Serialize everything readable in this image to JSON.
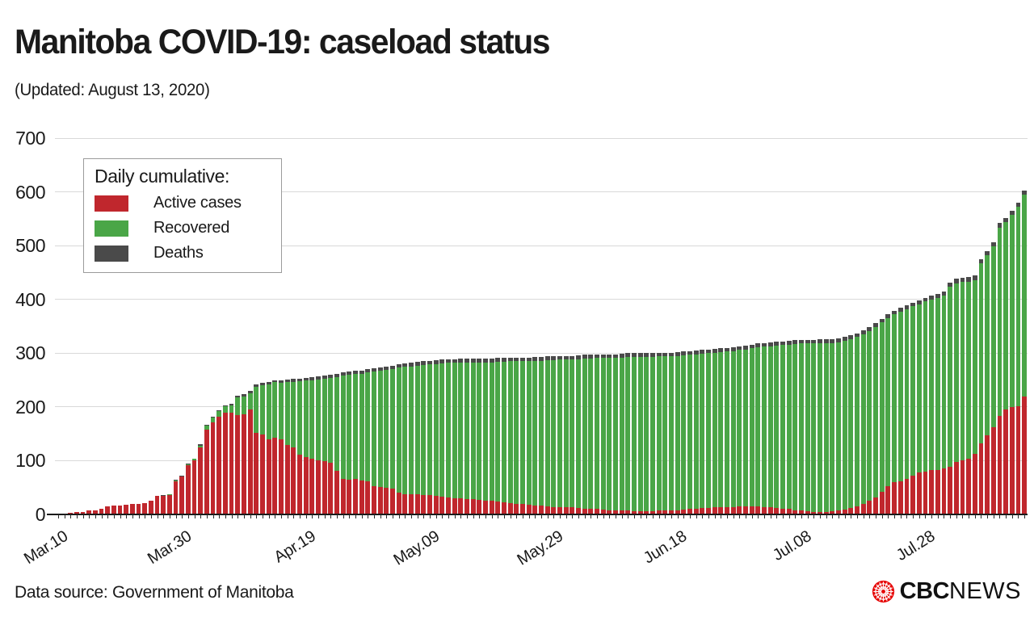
{
  "header": {
    "title": "Manitoba COVID-19: caseload status",
    "subtitle": "(Updated: August 13, 2020)"
  },
  "legend": {
    "title": "Daily cumulative:",
    "items": [
      {
        "label": "Active cases",
        "color": "#c0272d"
      },
      {
        "label": "Recovered",
        "color": "#4aa647"
      },
      {
        "label": "Deaths",
        "color": "#4a4a4a"
      }
    ]
  },
  "footer": {
    "source": "Data source: Government of Manitoba",
    "brand_cbc": "CBC",
    "brand_news": "NEWS"
  },
  "colors": {
    "active": "#c0272d",
    "recovered": "#4aa647",
    "deaths": "#4a4a4a",
    "gridline": "#d9d9d9",
    "axis": "#1a1a1a",
    "cbc_red": "#e60505"
  },
  "chart_data": {
    "type": "bar",
    "stacked": true,
    "title": "Manitoba COVID-19: caseload status",
    "xlabel": "",
    "ylabel": "",
    "ylim": [
      0,
      700
    ],
    "y_ticks": [
      0,
      100,
      200,
      300,
      400,
      500,
      600,
      700
    ],
    "grid": true,
    "legend_position": "top-left",
    "n_days": 157,
    "x_first_day": "Mar.10",
    "x_last_day": "Aug.13",
    "x_tick_labels": [
      "Mar.10",
      "Mar.30",
      "Apr.19",
      "May.09",
      "May.29",
      "Jun.18",
      "Jul.08",
      "Jul.28"
    ],
    "x_tick_positions": [
      0,
      20,
      40,
      60,
      80,
      100,
      120,
      140
    ],
    "series": [
      {
        "name": "Active cases",
        "color": "#c0272d",
        "values": [
          0,
          0,
          3,
          4,
          4,
          7,
          8,
          11,
          15,
          17,
          17,
          18,
          19,
          20,
          21,
          25,
          35,
          35,
          36,
          62,
          70,
          91,
          100,
          124,
          158,
          171,
          182,
          190,
          190,
          185,
          187,
          195,
          152,
          149,
          140,
          142,
          139,
          129,
          124,
          111,
          106,
          104,
          101,
          99,
          96,
          81,
          66,
          64,
          66,
          63,
          61,
          53,
          51,
          50,
          48,
          41,
          38,
          37,
          37,
          36,
          36,
          35,
          33,
          32,
          30,
          30,
          29,
          28,
          27,
          26,
          25,
          24,
          22,
          21,
          20,
          19,
          18,
          17,
          16,
          15,
          14,
          14,
          13,
          13,
          12,
          11,
          10,
          10,
          9,
          8,
          8,
          7,
          7,
          6,
          6,
          6,
          6,
          7,
          7,
          7,
          8,
          9,
          10,
          11,
          12,
          12,
          13,
          13,
          14,
          14,
          15,
          15,
          15,
          15,
          14,
          13,
          12,
          11,
          10,
          8,
          7,
          6,
          5,
          5,
          5,
          6,
          7,
          9,
          12,
          15,
          20,
          26,
          32,
          42,
          52,
          60,
          62,
          66,
          72,
          78,
          80,
          82,
          82,
          86,
          89,
          98,
          101,
          104,
          112,
          132,
          147,
          162,
          184,
          195,
          200,
          202,
          220
        ]
      },
      {
        "name": "Recovered",
        "color": "#4aa647",
        "values": [
          0,
          0,
          0,
          0,
          0,
          0,
          0,
          0,
          0,
          0,
          0,
          0,
          0,
          0,
          0,
          0,
          0,
          0,
          1,
          1,
          1,
          2,
          3,
          4,
          7,
          9,
          10,
          11,
          13,
          33,
          33,
          31,
          86,
          92,
          102,
          104,
          106,
          117,
          123,
          137,
          143,
          146,
          150,
          153,
          158,
          175,
          192,
          196,
          195,
          199,
          203,
          213,
          216,
          219,
          223,
          232,
          237,
          238,
          240,
          242,
          243,
          245,
          248,
          250,
          252,
          253,
          254,
          255,
          256,
          257,
          258,
          260,
          262,
          264,
          265,
          266,
          267,
          269,
          270,
          272,
          273,
          274,
          275,
          275,
          277,
          279,
          280,
          281,
          282,
          283,
          283,
          285,
          286,
          287,
          287,
          287,
          287,
          287,
          287,
          287,
          287,
          287,
          287,
          287,
          287,
          288,
          288,
          289,
          289,
          290,
          291,
          292,
          294,
          296,
          298,
          300,
          302,
          304,
          306,
          309,
          311,
          312,
          313,
          314,
          314,
          313,
          313,
          314,
          314,
          315,
          315,
          315,
          317,
          315,
          313,
          312,
          315,
          316,
          315,
          313,
          316,
          318,
          320,
          321,
          334,
          332,
          331,
          329,
          324,
          335,
          335,
          337,
          350,
          349,
          357,
          370,
          375
        ]
      },
      {
        "name": "Deaths",
        "color": "#4a4a4a",
        "values": [
          0,
          0,
          0,
          0,
          0,
          0,
          0,
          0,
          0,
          0,
          0,
          0,
          0,
          0,
          0,
          0,
          0,
          1,
          1,
          1,
          1,
          1,
          1,
          2,
          2,
          2,
          2,
          2,
          3,
          3,
          4,
          4,
          4,
          4,
          4,
          4,
          5,
          5,
          5,
          5,
          5,
          5,
          6,
          6,
          6,
          6,
          6,
          6,
          6,
          6,
          6,
          6,
          6,
          6,
          6,
          6,
          6,
          7,
          7,
          7,
          7,
          7,
          7,
          7,
          7,
          7,
          7,
          7,
          7,
          7,
          7,
          7,
          7,
          7,
          7,
          7,
          7,
          7,
          7,
          7,
          7,
          7,
          7,
          7,
          7,
          7,
          7,
          7,
          7,
          7,
          7,
          7,
          7,
          7,
          7,
          7,
          7,
          7,
          7,
          7,
          7,
          7,
          7,
          7,
          7,
          7,
          7,
          7,
          7,
          7,
          7,
          7,
          7,
          7,
          7,
          7,
          7,
          7,
          7,
          7,
          7,
          7,
          7,
          7,
          7,
          7,
          7,
          7,
          7,
          7,
          7,
          7,
          7,
          7,
          7,
          7,
          7,
          7,
          7,
          7,
          7,
          7,
          8,
          8,
          8,
          8,
          8,
          8,
          8,
          8,
          8,
          8,
          8,
          8,
          8,
          8,
          8
        ]
      }
    ]
  }
}
